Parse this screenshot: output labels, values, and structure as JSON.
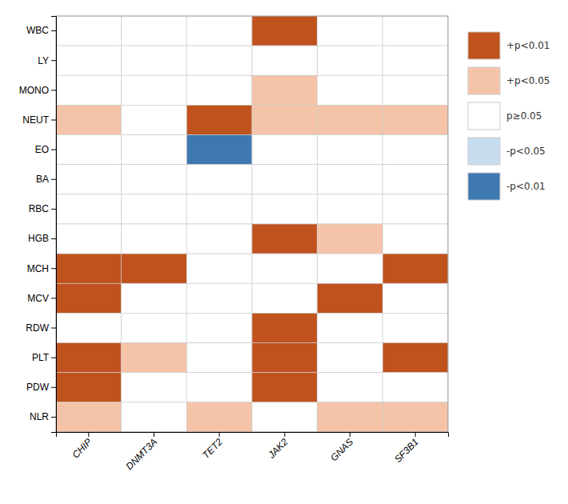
{
  "chart_data": {
    "type": "heatmap",
    "x": [
      "CHIP",
      "DNMT3A",
      "TET2",
      "JAK2",
      "GNAS",
      "SF3B1"
    ],
    "y": [
      "WBC",
      "LY",
      "MONO",
      "NEUT",
      "EO",
      "BA",
      "RBC",
      "HGB",
      "MCH",
      "MCV",
      "RDW",
      "PLT",
      "PDW",
      "NLR"
    ],
    "series": [
      {
        "name": "+p<0.01",
        "color": "#C0521E"
      },
      {
        "name": "+p<0.05",
        "color": "#F5C4A8"
      },
      {
        "name": "p≥0.05",
        "color": "#FFFFFF"
      },
      {
        "name": "-p<0.05",
        "color": "#C8DCF0"
      },
      {
        "name": "-p<0.01",
        "color": "#3E78B0"
      }
    ],
    "cells": [
      [
        "p≥0.05",
        "p≥0.05",
        "p≥0.05",
        "+p<0.01",
        "p≥0.05",
        "p≥0.05"
      ],
      [
        "p≥0.05",
        "p≥0.05",
        "p≥0.05",
        "p≥0.05",
        "p≥0.05",
        "p≥0.05"
      ],
      [
        "p≥0.05",
        "p≥0.05",
        "p≥0.05",
        "+p<0.05",
        "p≥0.05",
        "p≥0.05"
      ],
      [
        "+p<0.05",
        "p≥0.05",
        "+p<0.01",
        "+p<0.05",
        "+p<0.05",
        "+p<0.05"
      ],
      [
        "p≥0.05",
        "p≥0.05",
        "-p<0.01",
        "p≥0.05",
        "p≥0.05",
        "p≥0.05"
      ],
      [
        "p≥0.05",
        "p≥0.05",
        "p≥0.05",
        "p≥0.05",
        "p≥0.05",
        "p≥0.05"
      ],
      [
        "p≥0.05",
        "p≥0.05",
        "p≥0.05",
        "p≥0.05",
        "p≥0.05",
        "p≥0.05"
      ],
      [
        "p≥0.05",
        "p≥0.05",
        "p≥0.05",
        "+p<0.01",
        "+p<0.05",
        "p≥0.05"
      ],
      [
        "+p<0.01",
        "+p<0.01",
        "p≥0.05",
        "p≥0.05",
        "p≥0.05",
        "+p<0.01"
      ],
      [
        "+p<0.01",
        "p≥0.05",
        "p≥0.05",
        "p≥0.05",
        "+p<0.01",
        "p≥0.05"
      ],
      [
        "p≥0.05",
        "p≥0.05",
        "p≥0.05",
        "+p<0.01",
        "p≥0.05",
        "p≥0.05"
      ],
      [
        "+p<0.01",
        "+p<0.05",
        "p≥0.05",
        "+p<0.01",
        "p≥0.05",
        "+p<0.01"
      ],
      [
        "+p<0.01",
        "p≥0.05",
        "p≥0.05",
        "+p<0.01",
        "p≥0.05",
        "p≥0.05"
      ],
      [
        "+p<0.05",
        "p≥0.05",
        "+p<0.05",
        "p≥0.05",
        "+p<0.05",
        "+p<0.05"
      ]
    ],
    "legend": "right"
  }
}
